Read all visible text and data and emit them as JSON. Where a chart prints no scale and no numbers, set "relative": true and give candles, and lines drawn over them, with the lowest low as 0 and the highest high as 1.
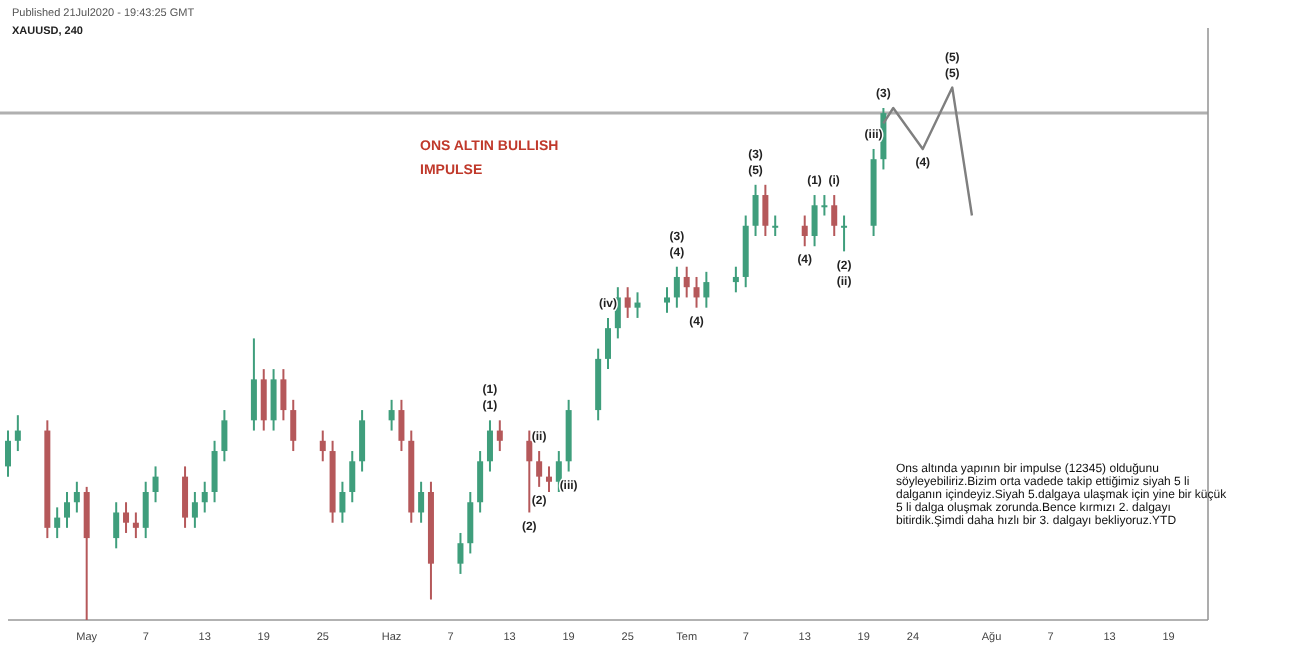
{
  "chart_data": {
    "type": "candlestick",
    "title": "XAUUSD, 240",
    "subtitle": "Published 21Jul2020 - 19:43:25 GMT",
    "relative": true,
    "x": [
      "2020-04-23",
      "2020-04-24",
      "2020-04-27",
      "2020-04-28",
      "2020-04-29",
      "2020-04-30",
      "2020-05-01",
      "2020-05-04",
      "2020-05-05",
      "2020-05-06",
      "2020-05-07",
      "2020-05-08",
      "2020-05-11",
      "2020-05-12",
      "2020-05-13",
      "2020-05-14",
      "2020-05-15",
      "2020-05-18",
      "2020-05-19",
      "2020-05-20",
      "2020-05-21",
      "2020-05-22",
      "2020-05-25",
      "2020-05-26",
      "2020-05-27",
      "2020-05-28",
      "2020-05-29",
      "2020-06-01",
      "2020-06-02",
      "2020-06-03",
      "2020-06-04",
      "2020-06-05",
      "2020-06-08",
      "2020-06-09",
      "2020-06-10",
      "2020-06-11",
      "2020-06-12",
      "2020-06-15",
      "2020-06-16",
      "2020-06-17",
      "2020-06-18",
      "2020-06-19",
      "2020-06-22",
      "2020-06-23",
      "2020-06-24",
      "2020-06-25",
      "2020-06-26",
      "2020-06-29",
      "2020-06-30",
      "2020-07-01",
      "2020-07-02",
      "2020-07-03",
      "2020-07-06",
      "2020-07-07",
      "2020-07-08",
      "2020-07-09",
      "2020-07-10",
      "2020-07-13",
      "2020-07-14",
      "2020-07-15",
      "2020-07-16",
      "2020-07-17",
      "2020-07-20",
      "2020-07-21"
    ],
    "ohlc": [
      [
        0.3,
        0.37,
        0.28,
        0.35
      ],
      [
        0.35,
        0.4,
        0.33,
        0.37
      ],
      [
        0.37,
        0.39,
        0.16,
        0.18
      ],
      [
        0.18,
        0.22,
        0.16,
        0.2
      ],
      [
        0.2,
        0.25,
        0.18,
        0.23
      ],
      [
        0.23,
        0.27,
        0.21,
        0.25
      ],
      [
        0.25,
        0.26,
        0,
        0.16
      ],
      [
        0.16,
        0.23,
        0.14,
        0.21
      ],
      [
        0.21,
        0.23,
        0.17,
        0.19
      ],
      [
        0.19,
        0.21,
        0.16,
        0.18
      ],
      [
        0.18,
        0.27,
        0.16,
        0.25
      ],
      [
        0.25,
        0.3,
        0.23,
        0.28
      ],
      [
        0.28,
        0.3,
        0.18,
        0.2
      ],
      [
        0.2,
        0.25,
        0.18,
        0.23
      ],
      [
        0.23,
        0.27,
        0.21,
        0.25
      ],
      [
        0.25,
        0.35,
        0.23,
        0.33
      ],
      [
        0.33,
        0.41,
        0.31,
        0.39
      ],
      [
        0.39,
        0.55,
        0.37,
        0.47
      ],
      [
        0.47,
        0.49,
        0.37,
        0.39
      ],
      [
        0.39,
        0.49,
        0.37,
        0.47
      ],
      [
        0.47,
        0.49,
        0.39,
        0.41
      ],
      [
        0.41,
        0.43,
        0.33,
        0.35
      ],
      [
        0.35,
        0.37,
        0.31,
        0.33
      ],
      [
        0.33,
        0.35,
        0.19,
        0.21
      ],
      [
        0.21,
        0.27,
        0.19,
        0.25
      ],
      [
        0.25,
        0.33,
        0.23,
        0.31
      ],
      [
        0.31,
        0.41,
        0.29,
        0.39
      ],
      [
        0.39,
        0.43,
        0.37,
        0.41
      ],
      [
        0.41,
        0.43,
        0.33,
        0.35
      ],
      [
        0.35,
        0.37,
        0.19,
        0.21
      ],
      [
        0.21,
        0.27,
        0.19,
        0.25
      ],
      [
        0.25,
        0.27,
        0.04,
        0.11
      ],
      [
        0.11,
        0.17,
        0.09,
        0.15
      ],
      [
        0.15,
        0.25,
        0.13,
        0.23
      ],
      [
        0.23,
        0.33,
        0.21,
        0.31
      ],
      [
        0.31,
        0.39,
        0.29,
        0.37
      ],
      [
        0.37,
        0.39,
        0.33,
        0.35
      ],
      [
        0.35,
        0.37,
        0.21,
        0.31
      ],
      [
        0.31,
        0.33,
        0.26,
        0.28
      ],
      [
        0.28,
        0.3,
        0.25,
        0.27
      ],
      [
        0.27,
        0.33,
        0.25,
        0.31
      ],
      [
        0.31,
        0.43,
        0.29,
        0.41
      ],
      [
        0.41,
        0.53,
        0.39,
        0.51
      ],
      [
        0.51,
        0.59,
        0.49,
        0.57
      ],
      [
        0.57,
        0.65,
        0.55,
        0.63
      ],
      [
        0.63,
        0.65,
        0.59,
        0.61
      ],
      [
        0.61,
        0.64,
        0.59,
        0.62
      ],
      [
        0.62,
        0.65,
        0.6,
        0.63
      ],
      [
        0.63,
        0.69,
        0.61,
        0.67
      ],
      [
        0.67,
        0.69,
        0.63,
        0.65
      ],
      [
        0.65,
        0.67,
        0.61,
        0.63
      ],
      [
        0.63,
        0.68,
        0.61,
        0.66
      ],
      [
        0.66,
        0.69,
        0.64,
        0.67
      ],
      [
        0.67,
        0.79,
        0.65,
        0.77
      ],
      [
        0.77,
        0.85,
        0.75,
        0.83
      ],
      [
        0.83,
        0.85,
        0.75,
        0.77
      ],
      [
        0.77,
        0.79,
        0.75,
        0.77
      ],
      [
        0.77,
        0.79,
        0.73,
        0.75
      ],
      [
        0.75,
        0.83,
        0.73,
        0.81
      ],
      [
        0.81,
        0.83,
        0.79,
        0.81
      ],
      [
        0.81,
        0.83,
        0.75,
        0.77
      ],
      [
        0.77,
        0.79,
        0.72,
        0.77
      ],
      [
        0.77,
        0.92,
        0.75,
        0.9
      ],
      [
        0.9,
        1,
        0.88,
        0.99
      ]
    ],
    "series": [
      {
        "type": "line",
        "color": "#7f7f7f",
        "x": [
          "2020-07-21",
          "2020-07-22",
          "2020-07-25",
          "2020-07-28",
          "2020-07-30"
        ],
        "values": [
          0.97,
          1.0,
          0.92,
          1.04,
          0.79
        ]
      }
    ],
    "xlim": [
      "2020-04-23",
      "2020-08-23"
    ],
    "xticks": [
      {
        "value": "2020-05-01",
        "label": "May"
      },
      {
        "value": "2020-05-07",
        "label": "7"
      },
      {
        "value": "2020-05-13",
        "label": "13"
      },
      {
        "value": "2020-05-19",
        "label": "19"
      },
      {
        "value": "2020-05-25",
        "label": "25"
      },
      {
        "value": "2020-06-01",
        "label": "Haz"
      },
      {
        "value": "2020-06-07",
        "label": "7"
      },
      {
        "value": "2020-06-13",
        "label": "13"
      },
      {
        "value": "2020-06-19",
        "label": "19"
      },
      {
        "value": "2020-06-25",
        "label": "25"
      },
      {
        "value": "2020-07-01",
        "label": "Tem"
      },
      {
        "value": "2020-07-07",
        "label": "7"
      },
      {
        "value": "2020-07-13",
        "label": "13"
      },
      {
        "value": "2020-07-19",
        "label": "19"
      },
      {
        "value": "2020-07-24",
        "label": "24"
      },
      {
        "value": "2020-08-01",
        "label": "Ağu"
      },
      {
        "value": "2020-08-07",
        "label": "7"
      },
      {
        "value": "2020-08-13",
        "label": "13"
      },
      {
        "value": "2020-08-19",
        "label": "19"
      }
    ],
    "ref_lines": [
      {
        "axis": "y",
        "value": 0.99,
        "color": "#b0b0b0"
      }
    ],
    "annotations": [
      "ONS ALTIN BULLISH",
      "IMPULSE",
      "Ons altında yapının bir impulse (12345) olduğunu söyleyebiliriz.Bizim orta vadede takip ettiğimiz siyah 5 li dalganın içindeyiz.Siyah 5.dalgaya ulaşmak için yine bir küçük 5 li dalga oluşmak zorunda.Bence kırmızı 2. dalgayı bitirdik.Şimdi daha hızlı bir 3. dalgayı bekliyoruz.YTD",
      {
        "text": "(1)",
        "x": "2020-06-11",
        "y": 0.39
      },
      {
        "text": "(1)",
        "x": "2020-06-11",
        "y": 0.39
      },
      {
        "text": "(2)",
        "x": "2020-06-15",
        "y": 0.21
      },
      {
        "text": "(5)",
        "x": "2020-07-08",
        "y": 0.85
      },
      {
        "text": "(3)",
        "x": "2020-07-08",
        "y": 0.85
      },
      {
        "text": "(4)",
        "x": "2020-07-13",
        "y": 0.73
      },
      {
        "text": "(5)",
        "x": "2020-07-28",
        "y": 1.04
      },
      {
        "text": "(5)",
        "x": "2020-07-28",
        "y": 1.04
      },
      {
        "text": "(1)",
        "x": "2020-07-14",
        "y": 0.83
      },
      {
        "text": "(2)",
        "x": "2020-07-17",
        "y": 0.72
      },
      {
        "text": "(3)",
        "x": "2020-07-21",
        "y": 1
      },
      {
        "text": "(4)",
        "x": "2020-07-25",
        "y": 0.92
      },
      {
        "text": "(4)",
        "x": "2020-06-30",
        "y": 0.69
      },
      {
        "text": "(3)",
        "x": "2020-06-30",
        "y": 0.69
      },
      {
        "text": "(4)",
        "x": "2020-07-02",
        "y": 0.61
      },
      {
        "text": "(ii)",
        "x": "2020-06-16",
        "y": 0.33
      },
      {
        "text": "(2)",
        "x": "2020-06-16",
        "y": 0.26
      },
      {
        "text": "(iii)",
        "x": "2020-06-19",
        "y": 0.29
      },
      {
        "text": "(iv)",
        "x": "2020-06-23",
        "y": 0.59
      },
      {
        "text": "(i)",
        "x": "2020-07-16",
        "y": 0.83
      },
      {
        "text": "(ii)",
        "x": "2020-07-17",
        "y": 0.72
      },
      {
        "text": "(iii)",
        "x": "2020-07-20",
        "y": 0.92
      }
    ]
  }
}
